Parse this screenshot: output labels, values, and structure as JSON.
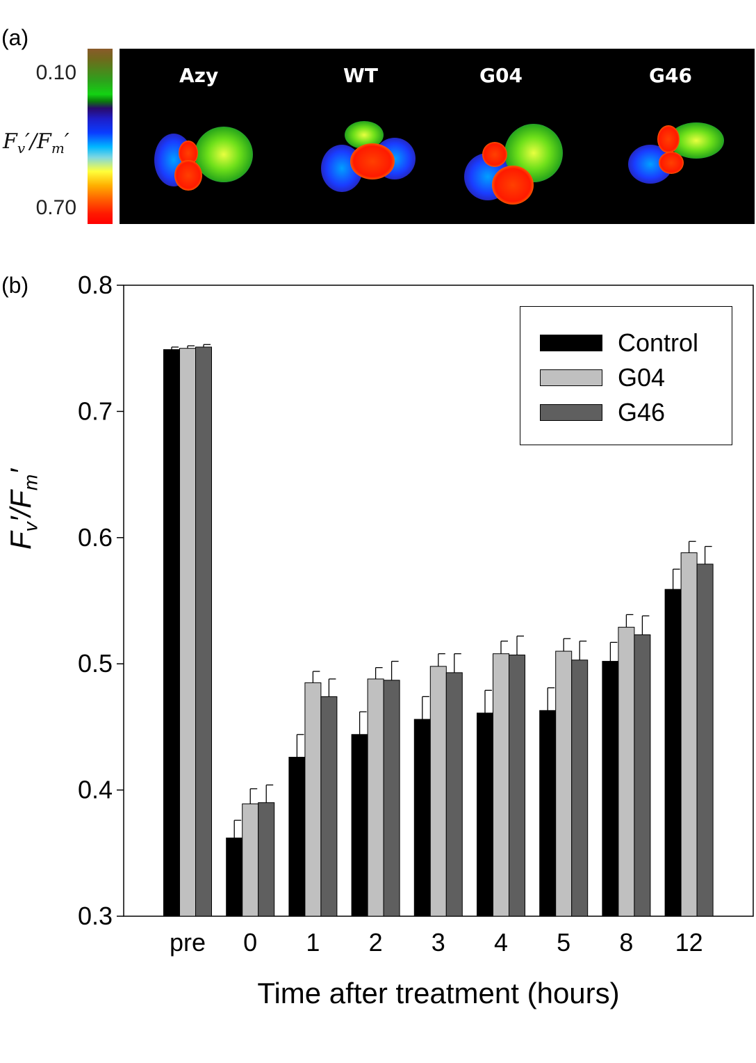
{
  "panel_a": {
    "label": "(a)",
    "colorbar": {
      "top_tick": "0.10",
      "bottom_tick": "0.70",
      "label_main": "F",
      "label_sub_v": "v",
      "label_mid": "′/F",
      "label_sub_m": "m",
      "label_end": "′"
    },
    "samples": [
      "Azy",
      "WT",
      "G04",
      "G46"
    ]
  },
  "panel_b": {
    "label": "(b)"
  },
  "chart_data": {
    "type": "bar",
    "ylabel_main": "F",
    "ylabel_sub_v": "v",
    "ylabel_mid": "′/F",
    "ylabel_sub_m": "m",
    "ylabel_end": "′",
    "xlabel": "Time after treatment (hours)",
    "ylim": [
      0.3,
      0.8
    ],
    "yticks": [
      "0.3",
      "0.4",
      "0.5",
      "0.6",
      "0.7",
      "0.8"
    ],
    "categories": [
      "pre",
      "0",
      "1",
      "2",
      "3",
      "4",
      "5",
      "8",
      "12"
    ],
    "legend_position": "top-right",
    "series": [
      {
        "name": "Control",
        "color": "#000000",
        "values": [
          0.749,
          0.362,
          0.426,
          0.444,
          0.456,
          0.461,
          0.463,
          0.502,
          0.559
        ],
        "errors": [
          0.002,
          0.014,
          0.018,
          0.018,
          0.018,
          0.018,
          0.018,
          0.015,
          0.016
        ]
      },
      {
        "name": "G04",
        "color": "#c0c0c0",
        "values": [
          0.75,
          0.389,
          0.485,
          0.488,
          0.498,
          0.508,
          0.51,
          0.529,
          0.588
        ],
        "errors": [
          0.002,
          0.012,
          0.009,
          0.009,
          0.01,
          0.01,
          0.01,
          0.01,
          0.009
        ]
      },
      {
        "name": "G46",
        "color": "#5f5f5f",
        "values": [
          0.751,
          0.39,
          0.474,
          0.487,
          0.493,
          0.507,
          0.503,
          0.523,
          0.579
        ],
        "errors": [
          0.002,
          0.014,
          0.014,
          0.015,
          0.015,
          0.015,
          0.015,
          0.015,
          0.014
        ]
      }
    ]
  }
}
